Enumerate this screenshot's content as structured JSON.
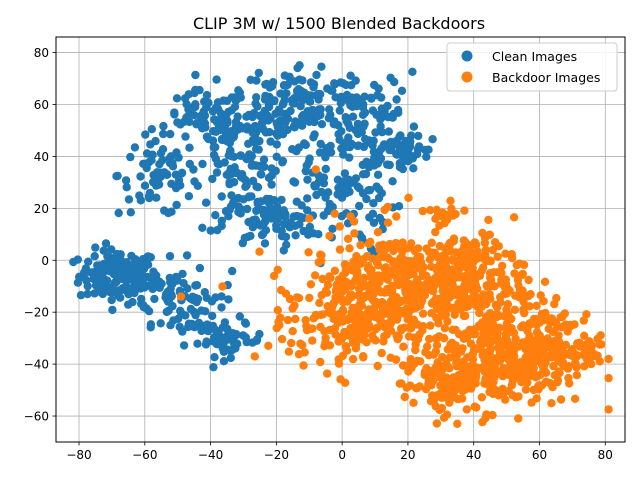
{
  "chart_data": {
    "type": "scatter",
    "title": "CLIP 3M w/ 1500 Blended Backdoors",
    "xlabel": "",
    "ylabel": "",
    "xlim": [
      -87,
      86
    ],
    "ylim": [
      -70,
      86
    ],
    "xticks": [
      -80,
      -60,
      -40,
      -20,
      0,
      20,
      40,
      60,
      80
    ],
    "yticks": [
      -60,
      -40,
      -20,
      0,
      20,
      40,
      60,
      80
    ],
    "grid": true,
    "legend_position": "top-right",
    "series": [
      {
        "name": "Clean Images",
        "color": "#1f77b4",
        "clusters": [
          {
            "cx": -68,
            "cy": -6,
            "sx": 6,
            "sy": 5,
            "n": 150
          },
          {
            "cx": -52,
            "cy": -12,
            "sx": 6,
            "sy": 6,
            "n": 60
          },
          {
            "cx": -45,
            "cy": -20,
            "sx": 5,
            "sy": 6,
            "n": 40
          },
          {
            "cx": -34,
            "cy": -31,
            "sx": 5,
            "sy": 3,
            "n": 45
          },
          {
            "cx": -56,
            "cy": 33,
            "sx": 6,
            "sy": 8,
            "n": 70
          },
          {
            "cx": -42,
            "cy": 55,
            "sx": 6,
            "sy": 5,
            "n": 60
          },
          {
            "cx": -33,
            "cy": 45,
            "sx": 6,
            "sy": 8,
            "n": 60
          },
          {
            "cx": -30,
            "cy": 28,
            "sx": 6,
            "sy": 8,
            "n": 60
          },
          {
            "cx": -22,
            "cy": 15,
            "sx": 7,
            "sy": 5,
            "n": 70
          },
          {
            "cx": -12,
            "cy": 62,
            "sx": 10,
            "sy": 7,
            "n": 120
          },
          {
            "cx": -2,
            "cy": 30,
            "sx": 10,
            "sy": 14,
            "n": 130
          },
          {
            "cx": 8,
            "cy": 52,
            "sx": 8,
            "sy": 10,
            "n": 80
          },
          {
            "cx": 17,
            "cy": 43,
            "sx": 4,
            "sy": 3,
            "n": 50
          },
          {
            "cx": -22,
            "cy": 52,
            "sx": 6,
            "sy": 6,
            "n": 50
          }
        ]
      },
      {
        "name": "Backdoor Images",
        "color": "#ff7f0e",
        "clusters": [
          {
            "cx": 20,
            "cy": -12,
            "sx": 15,
            "sy": 12,
            "n": 450
          },
          {
            "cx": 0,
            "cy": -22,
            "sx": 8,
            "sy": 10,
            "n": 160
          },
          {
            "cx": 50,
            "cy": -38,
            "sx": 12,
            "sy": 9,
            "n": 300
          },
          {
            "cx": 38,
            "cy": -8,
            "sx": 9,
            "sy": 9,
            "n": 160
          },
          {
            "cx": 30,
            "cy": -48,
            "sx": 6,
            "sy": 5,
            "n": 80
          },
          {
            "cx": 62,
            "cy": -30,
            "sx": 7,
            "sy": 8,
            "n": 80
          },
          {
            "cx": 72,
            "cy": -34,
            "sx": 4,
            "sy": 3,
            "n": 25
          },
          {
            "cx": 30,
            "cy": 14,
            "sx": 3,
            "sy": 3,
            "n": 15
          }
        ],
        "outliers": [
          {
            "x": -49,
            "y": -14
          },
          {
            "x": -8,
            "y": 35
          },
          {
            "x": -10,
            "y": 16
          },
          {
            "x": 35,
            "y": -63
          }
        ]
      }
    ]
  }
}
